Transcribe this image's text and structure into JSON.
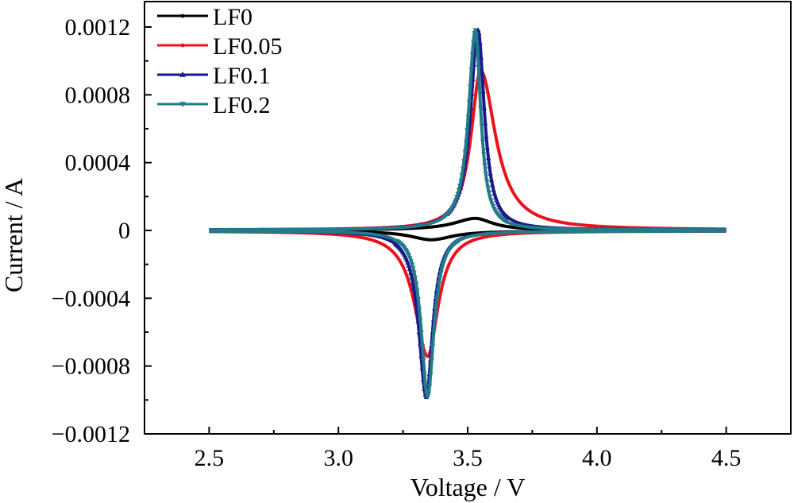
{
  "chart_data": {
    "type": "line",
    "xlabel": "Voltage / V",
    "ylabel": "Current / A",
    "xlim": [
      2.25,
      4.75
    ],
    "ylim": [
      -0.0012,
      0.00135
    ],
    "xticks": [
      2.5,
      3.0,
      3.5,
      4.0,
      4.5
    ],
    "xtick_labels": [
      "2.5",
      "3.0",
      "3.5",
      "4.0",
      "4.5"
    ],
    "yticks": [
      -0.0012,
      -0.0008,
      -0.0004,
      0,
      0.0004,
      0.0008,
      0.0012
    ],
    "ytick_labels": [
      "−0.0012",
      "−0.0008",
      "−0.0004",
      "0",
      "0.0004",
      "0.0008",
      "0.0012"
    ],
    "grid": false,
    "legend_position": "top-left",
    "series": [
      {
        "name": "LF0",
        "color": "#000000",
        "marker": "circle",
        "charge": {
          "baseline": 3e-06,
          "peak_v": 3.53,
          "peak_i": 6.8e-05,
          "w_left": 0.1,
          "w_right": 0.08
        },
        "discharge": {
          "baseline": -3e-06,
          "peak_v": 3.36,
          "peak_i": -5.2e-05,
          "w_left": 0.1,
          "w_right": 0.1
        }
      },
      {
        "name": "LF0.05",
        "color": "#e8141c",
        "marker": "circle",
        "charge": {
          "baseline": 3e-06,
          "peak_v": 3.55,
          "peak_i": 0.00094,
          "w_left": 0.045,
          "w_right": 0.07
        },
        "discharge": {
          "baseline": -3e-06,
          "peak_v": 3.345,
          "peak_i": -0.00074,
          "w_left": 0.06,
          "w_right": 0.05
        }
      },
      {
        "name": "LF0.1",
        "color": "#1a1a8c",
        "marker": "triangle-up",
        "charge": {
          "baseline": 3e-06,
          "peak_v": 3.54,
          "peak_i": 0.00118,
          "w_left": 0.035,
          "w_right": 0.03
        },
        "discharge": {
          "baseline": -3e-06,
          "peak_v": 3.34,
          "peak_i": -0.00098,
          "w_left": 0.035,
          "w_right": 0.03
        }
      },
      {
        "name": "LF0.2",
        "color": "#237b8a",
        "marker": "triangle-down",
        "charge": {
          "baseline": 3e-06,
          "peak_v": 3.53,
          "peak_i": 0.00118,
          "w_left": 0.032,
          "w_right": 0.025
        },
        "discharge": {
          "baseline": -3e-06,
          "peak_v": 3.345,
          "peak_i": -0.00098,
          "w_left": 0.03,
          "w_right": 0.03
        }
      }
    ]
  }
}
